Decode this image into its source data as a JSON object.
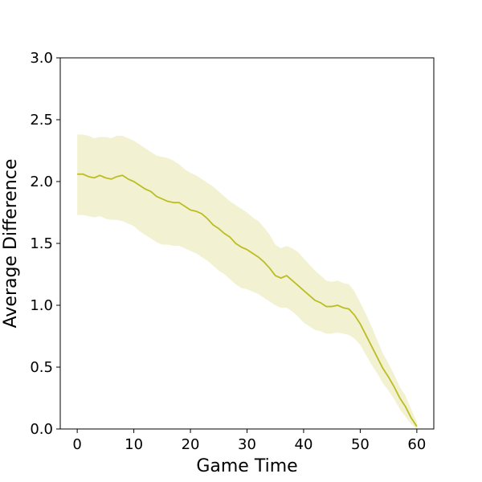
{
  "chart_data": {
    "type": "line",
    "title": "",
    "xlabel": "Game Time",
    "ylabel": "Average Difference",
    "xlim": [
      -3,
      63
    ],
    "ylim": [
      0,
      3.0
    ],
    "xticks": [
      0,
      10,
      20,
      30,
      40,
      50,
      60
    ],
    "yticks": [
      0.0,
      0.5,
      1.0,
      1.5,
      2.0,
      2.5,
      3.0
    ],
    "xtick_labels": [
      "0",
      "10",
      "20",
      "30",
      "40",
      "50",
      "60"
    ],
    "ytick_labels": [
      "0.0",
      "0.5",
      "1.0",
      "1.5",
      "2.0",
      "2.5",
      "3.0"
    ],
    "grid": false,
    "legend": "none",
    "line_color": "#bcbd22",
    "band_color": "#bcbd22",
    "series": [
      {
        "x": [
          0,
          1,
          2,
          3,
          4,
          5,
          6,
          7,
          8,
          9,
          10,
          11,
          12,
          13,
          14,
          15,
          16,
          17,
          18,
          19,
          20,
          21,
          22,
          23,
          24,
          25,
          26,
          27,
          28,
          29,
          30,
          31,
          32,
          33,
          34,
          35,
          36,
          37,
          38,
          39,
          40,
          41,
          42,
          43,
          44,
          45,
          46,
          47,
          48,
          49,
          50,
          51,
          52,
          53,
          54,
          55,
          56,
          57,
          58,
          59,
          60
        ],
        "y": [
          2.06,
          2.06,
          2.04,
          2.03,
          2.05,
          2.03,
          2.02,
          2.04,
          2.05,
          2.02,
          2.0,
          1.97,
          1.94,
          1.92,
          1.88,
          1.86,
          1.84,
          1.83,
          1.83,
          1.8,
          1.77,
          1.76,
          1.74,
          1.7,
          1.65,
          1.62,
          1.58,
          1.55,
          1.5,
          1.47,
          1.45,
          1.42,
          1.39,
          1.35,
          1.3,
          1.24,
          1.22,
          1.24,
          1.2,
          1.16,
          1.12,
          1.08,
          1.04,
          1.02,
          0.99,
          0.99,
          1.0,
          0.98,
          0.97,
          0.92,
          0.85,
          0.76,
          0.67,
          0.58,
          0.49,
          0.42,
          0.34,
          0.25,
          0.18,
          0.09,
          0.02
        ],
        "lower": [
          1.73,
          1.73,
          1.72,
          1.71,
          1.72,
          1.7,
          1.69,
          1.69,
          1.68,
          1.66,
          1.64,
          1.6,
          1.57,
          1.54,
          1.51,
          1.49,
          1.49,
          1.48,
          1.48,
          1.46,
          1.44,
          1.42,
          1.39,
          1.36,
          1.32,
          1.28,
          1.25,
          1.21,
          1.17,
          1.14,
          1.13,
          1.11,
          1.09,
          1.06,
          1.03,
          1.0,
          0.98,
          0.98,
          0.95,
          0.91,
          0.86,
          0.83,
          0.8,
          0.79,
          0.77,
          0.77,
          0.78,
          0.77,
          0.76,
          0.73,
          0.68,
          0.6,
          0.52,
          0.45,
          0.37,
          0.31,
          0.24,
          0.16,
          0.1,
          0.04,
          0.0
        ],
        "upper": [
          2.38,
          2.38,
          2.37,
          2.35,
          2.36,
          2.36,
          2.35,
          2.37,
          2.37,
          2.35,
          2.33,
          2.3,
          2.27,
          2.24,
          2.21,
          2.2,
          2.19,
          2.17,
          2.14,
          2.1,
          2.07,
          2.05,
          2.02,
          1.99,
          1.96,
          1.92,
          1.88,
          1.84,
          1.81,
          1.78,
          1.75,
          1.71,
          1.68,
          1.63,
          1.57,
          1.49,
          1.46,
          1.48,
          1.46,
          1.43,
          1.38,
          1.33,
          1.28,
          1.24,
          1.2,
          1.19,
          1.2,
          1.18,
          1.17,
          1.11,
          1.02,
          0.93,
          0.83,
          0.72,
          0.61,
          0.53,
          0.44,
          0.34,
          0.27,
          0.16,
          0.06
        ]
      }
    ]
  }
}
